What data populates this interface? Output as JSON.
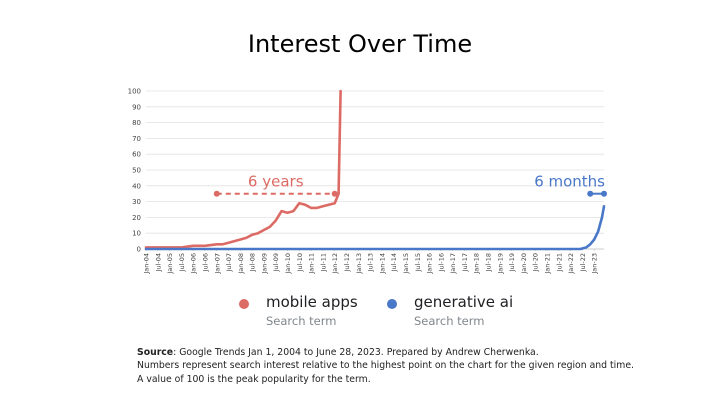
{
  "slide": {
    "title": "Interest Over Time"
  },
  "chart_data": {
    "type": "line",
    "title": "",
    "xlabel": "",
    "ylabel": "",
    "ylim": [
      0,
      100
    ],
    "yticks": [
      0,
      10,
      20,
      30,
      40,
      50,
      60,
      70,
      80,
      90,
      100
    ],
    "xlim": [
      "2004-01",
      "2023-06"
    ],
    "xticks": [
      "Jan-04",
      "Jul-04",
      "Jan-05",
      "Jul-05",
      "Jan-06",
      "Jul-06",
      "Jan-07",
      "Jul-07",
      "Jan-08",
      "Jul-08",
      "Jan-09",
      "Jul-09",
      "Jan-10",
      "Jul-10",
      "Jan-11",
      "Jul-11",
      "Jan-12",
      "Jul-12",
      "Jan-13",
      "Jul-13",
      "Jan-14",
      "Jul-14",
      "Jan-15",
      "Jul-15",
      "Jan-16",
      "Jul-16",
      "Jan-17",
      "Jul-17",
      "Jan-18",
      "Jul-18",
      "Jan-19",
      "Jul-19",
      "Jan-20",
      "Jul-20",
      "Jan-21",
      "Jul-21",
      "Jan-22",
      "Jul-22",
      "Jan-23"
    ],
    "grid": true,
    "legend_position": "bottom",
    "series": [
      {
        "name": "mobile apps",
        "subtitle": "Search term",
        "color": "#dd6b65",
        "x": [
          "2004-01",
          "2004-07",
          "2005-01",
          "2005-07",
          "2006-01",
          "2006-07",
          "2007-01",
          "2007-04",
          "2007-07",
          "2007-10",
          "2008-01",
          "2008-04",
          "2008-07",
          "2008-10",
          "2009-01",
          "2009-04",
          "2009-07",
          "2009-10",
          "2010-01",
          "2010-04",
          "2010-07",
          "2010-10",
          "2011-01",
          "2011-04",
          "2011-07",
          "2011-10",
          "2012-01",
          "2012-03",
          "2012-04"
        ],
        "values": [
          1,
          1,
          1,
          1,
          2,
          2,
          3,
          3,
          4,
          5,
          6,
          7,
          9,
          10,
          12,
          14,
          18,
          24,
          23,
          24,
          29,
          28,
          26,
          26,
          27,
          28,
          29,
          35,
          100
        ]
      },
      {
        "name": "generative ai",
        "subtitle": "Search term",
        "color": "#4a78c8",
        "x": [
          "2004-01",
          "2022-06",
          "2022-09",
          "2022-11",
          "2023-01",
          "2023-03",
          "2023-05",
          "2023-06"
        ],
        "values": [
          0,
          0,
          1,
          3,
          6,
          11,
          20,
          27
        ]
      }
    ],
    "annotations": [
      {
        "text": "6 years",
        "color": "#dd6b65",
        "from": "2007-01",
        "to": "2012-01",
        "y": 35
      },
      {
        "text": "6 months",
        "color": "#4a78c8",
        "from": "2022-11",
        "to": "2023-06",
        "y": 35
      }
    ]
  },
  "notes": {
    "source_label": "Source",
    "source_text": ": Google Trends Jan 1, 2004 to June 28, 2023. Prepared by Andrew Cherwenka.",
    "line2": "Numbers represent search interest relative to the highest point on the chart for the given region and time.",
    "line3": "A value of 100 is the peak popularity for the term."
  }
}
